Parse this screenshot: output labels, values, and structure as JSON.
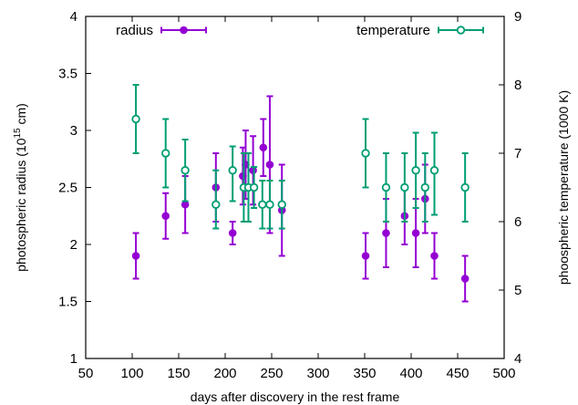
{
  "chart_data": {
    "type": "scatter",
    "xlabel": "days after discovery in the rest frame",
    "ylabel": "photospheric radius (10",
    "ylabel_sup": "15",
    "ylabel_tail": " cm)",
    "y2label": "phoospheric temperature (1000 K)",
    "xlim": [
      50,
      500
    ],
    "ylim": [
      1,
      4
    ],
    "y2lim": [
      4,
      9
    ],
    "xticks": [
      50,
      100,
      150,
      200,
      250,
      300,
      350,
      400,
      450,
      500
    ],
    "yticks": [
      "1",
      "1.5",
      "2",
      "2.5",
      "3",
      "3.5",
      "4"
    ],
    "y2ticks": [
      4,
      5,
      6,
      7,
      8,
      9
    ],
    "grid": false,
    "legend": "top",
    "series": [
      {
        "name": "radius",
        "axis": "left",
        "color": "#9400d3",
        "marker": "filled-circle",
        "points": [
          {
            "x": 104,
            "y": 1.9,
            "lo": 1.7,
            "hi": 2.1
          },
          {
            "x": 136,
            "y": 2.25,
            "lo": 2.05,
            "hi": 2.45
          },
          {
            "x": 157,
            "y": 2.35,
            "lo": 2.1,
            "hi": 2.6
          },
          {
            "x": 190,
            "y": 2.5,
            "lo": 2.2,
            "hi": 2.8
          },
          {
            "x": 208,
            "y": 2.1,
            "lo": 2.0,
            "hi": 2.2
          },
          {
            "x": 219,
            "y": 2.6,
            "lo": 2.35,
            "hi": 2.85
          },
          {
            "x": 222,
            "y": 2.7,
            "lo": 2.4,
            "hi": 3.0
          },
          {
            "x": 230,
            "y": 2.65,
            "lo": 2.35,
            "hi": 2.95
          },
          {
            "x": 241,
            "y": 2.85,
            "lo": 2.6,
            "hi": 3.1
          },
          {
            "x": 248,
            "y": 2.7,
            "lo": 2.1,
            "hi": 3.3
          },
          {
            "x": 261,
            "y": 2.3,
            "lo": 1.9,
            "hi": 2.7
          },
          {
            "x": 351,
            "y": 1.9,
            "lo": 1.7,
            "hi": 2.1
          },
          {
            "x": 373,
            "y": 2.1,
            "lo": 1.8,
            "hi": 2.4
          },
          {
            "x": 393,
            "y": 2.25,
            "lo": 2.0,
            "hi": 2.5
          },
          {
            "x": 405,
            "y": 2.1,
            "lo": 1.8,
            "hi": 2.4
          },
          {
            "x": 415,
            "y": 2.4,
            "lo": 2.1,
            "hi": 2.7
          },
          {
            "x": 425,
            "y": 1.9,
            "lo": 1.7,
            "hi": 2.1
          },
          {
            "x": 458,
            "y": 1.7,
            "lo": 1.5,
            "hi": 1.9
          }
        ]
      },
      {
        "name": "temperature",
        "axis": "right",
        "color": "#009e73",
        "marker": "open-circle",
        "points": [
          {
            "x": 104,
            "y": 7.5,
            "lo": 7.0,
            "hi": 8.0
          },
          {
            "x": 136,
            "y": 7.0,
            "lo": 6.5,
            "hi": 7.5
          },
          {
            "x": 157,
            "y": 6.75,
            "lo": 6.3,
            "hi": 7.2
          },
          {
            "x": 190,
            "y": 6.25,
            "lo": 5.9,
            "hi": 6.75
          },
          {
            "x": 208,
            "y": 6.75,
            "lo": 6.3,
            "hi": 7.1
          },
          {
            "x": 220,
            "y": 6.5,
            "lo": 6.0,
            "hi": 7.0
          },
          {
            "x": 225,
            "y": 6.5,
            "lo": 6.0,
            "hi": 7.0
          },
          {
            "x": 231,
            "y": 6.5,
            "lo": 6.2,
            "hi": 6.8
          },
          {
            "x": 240,
            "y": 6.25,
            "lo": 5.9,
            "hi": 6.6
          },
          {
            "x": 248,
            "y": 6.25,
            "lo": 5.9,
            "hi": 6.6
          },
          {
            "x": 261,
            "y": 6.25,
            "lo": 5.9,
            "hi": 6.6
          },
          {
            "x": 351,
            "y": 7.0,
            "lo": 6.5,
            "hi": 7.5
          },
          {
            "x": 373,
            "y": 6.5,
            "lo": 6.0,
            "hi": 7.0
          },
          {
            "x": 393,
            "y": 6.5,
            "lo": 6.0,
            "hi": 7.0
          },
          {
            "x": 405,
            "y": 6.75,
            "lo": 6.2,
            "hi": 7.3
          },
          {
            "x": 415,
            "y": 6.5,
            "lo": 6.0,
            "hi": 7.0
          },
          {
            "x": 425,
            "y": 6.75,
            "lo": 6.1,
            "hi": 7.3
          },
          {
            "x": 458,
            "y": 6.5,
            "lo": 6.0,
            "hi": 7.0
          }
        ]
      }
    ]
  }
}
